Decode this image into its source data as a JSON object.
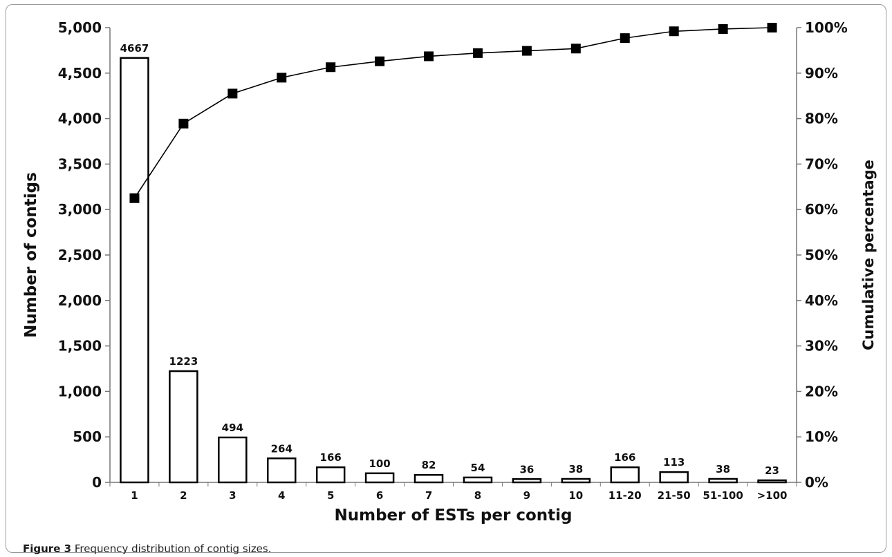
{
  "caption": {
    "label": "Figure 3",
    "text": "Frequency distribution of contig sizes."
  },
  "chart_data": {
    "type": "bar",
    "title": "",
    "xlabel": "Number of ESTs per contig",
    "ylabel": "Number of contigs",
    "y2label": "Cumulative percentage",
    "ylim": [
      0,
      5000
    ],
    "y2lim": [
      0,
      100
    ],
    "yticks": [
      "0",
      "500",
      "1,000",
      "1,500",
      "2,000",
      "2,500",
      "3,000",
      "3,500",
      "4,000",
      "4,500",
      "5,000"
    ],
    "y2ticks": [
      "0%",
      "10%",
      "20%",
      "30%",
      "40%",
      "50%",
      "60%",
      "70%",
      "80%",
      "90%",
      "100%"
    ],
    "categories": [
      "1",
      "2",
      "3",
      "4",
      "5",
      "6",
      "7",
      "8",
      "9",
      "10",
      "11-20",
      "21-50",
      "51-100",
      ">100"
    ],
    "series": [
      {
        "kind": "bar",
        "axis": "left",
        "values": [
          4667,
          1223,
          494,
          264,
          166,
          100,
          82,
          54,
          36,
          38,
          166,
          113,
          38,
          23
        ],
        "labels": [
          "4667",
          "1223",
          "494",
          "264",
          "166",
          "100",
          "82",
          "54",
          "36",
          "38",
          "166",
          "113",
          "38",
          "23"
        ]
      },
      {
        "kind": "line",
        "axis": "right",
        "values": [
          62.5,
          78.9,
          85.5,
          89.0,
          91.3,
          92.6,
          93.7,
          94.4,
          94.9,
          95.4,
          97.7,
          99.2,
          99.7,
          100
        ]
      }
    ],
    "grid": false,
    "legend": "none",
    "colors": {
      "bar_fill": "#ffffff",
      "bar_stroke": "#000000",
      "line": "#000000",
      "marker": "#000000"
    }
  }
}
